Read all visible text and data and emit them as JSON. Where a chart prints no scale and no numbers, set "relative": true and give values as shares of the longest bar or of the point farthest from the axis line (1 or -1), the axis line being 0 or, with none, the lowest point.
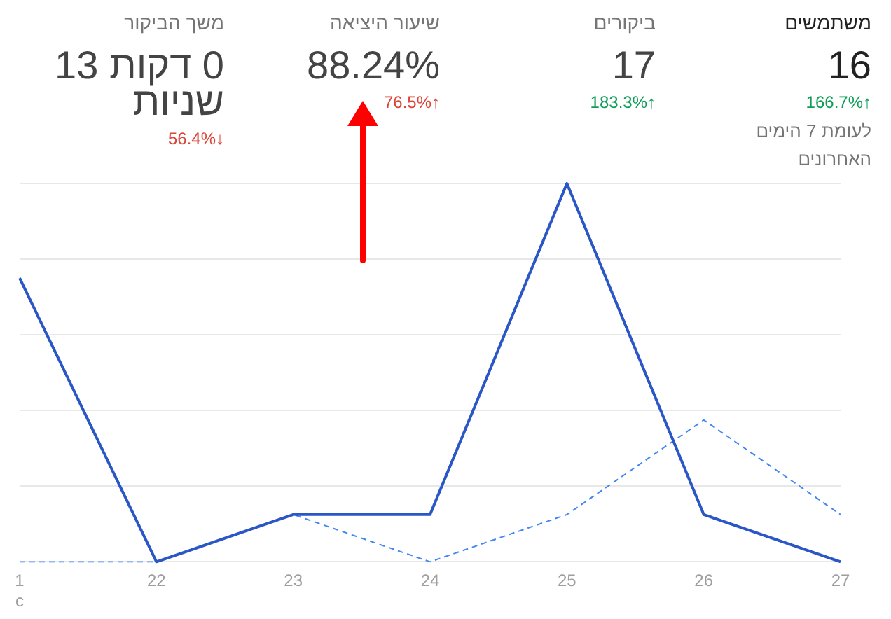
{
  "chart_data": [
    {
      "type": "other",
      "title": "משתמשים",
      "annotations": [
        "16",
        "166.7%↑",
        "לעומת 7 הימים האחרונים"
      ],
      "color": "#0f9d58"
    },
    {
      "type": "other",
      "title": "ביקורים",
      "annotations": [
        "17",
        "183.3%↑"
      ],
      "color": "#0f9d58"
    },
    {
      "type": "other",
      "title": "שיעור היציאה",
      "annotations": [
        "88.24%",
        "76.5%↑"
      ],
      "color": "#db4437"
    },
    {
      "type": "other",
      "title": "משך הביקור",
      "annotations": [
        "0 דקות 13 שניות",
        "56.4%↓"
      ],
      "color": "#db4437"
    },
    {
      "type": "line",
      "relative": true,
      "grid": "y",
      "categories": [
        "1\nc",
        "22",
        "23",
        "24",
        "25",
        "26",
        "27"
      ],
      "series": [
        {
          "color": "#2a56c6",
          "line_style": "solid",
          "values": [
            0.75,
            0,
            0.125,
            0.125,
            1,
            0.125,
            0
          ]
        },
        {
          "color": "#4285f4",
          "line_style": "dashed",
          "values": [
            0,
            0,
            0.125,
            0,
            0.125,
            0.375,
            0.125
          ]
        }
      ]
    }
  ]
}
